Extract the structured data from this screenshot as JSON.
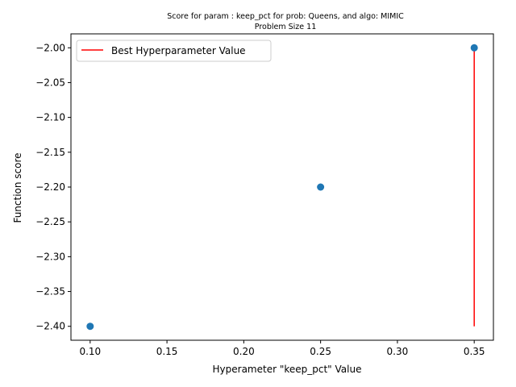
{
  "chart_data": {
    "type": "scatter",
    "title_line1": "Score for param : keep_pct for prob: Queens, and algo: MIMIC",
    "title_line2": "Problem Size 11",
    "xlabel": "Hyperameter \"keep_pct\" Value",
    "ylabel": "Function score",
    "xlim": [
      0.0875,
      0.3625
    ],
    "ylim": [
      -2.42,
      -1.98
    ],
    "x_ticks": [
      0.1,
      0.15,
      0.2,
      0.25,
      0.3,
      0.35
    ],
    "x_tick_labels": [
      "0.10",
      "0.15",
      "0.20",
      "0.25",
      "0.30",
      "0.35"
    ],
    "y_ticks": [
      -2.4,
      -2.35,
      -2.3,
      -2.25,
      -2.2,
      -2.15,
      -2.1,
      -2.05,
      -2.0
    ],
    "y_tick_labels": [
      "−2.40",
      "−2.35",
      "−2.30",
      "−2.25",
      "−2.20",
      "−2.15",
      "−2.10",
      "−2.05",
      "−2.00"
    ],
    "series": [
      {
        "x": [
          0.1,
          0.25,
          0.35
        ],
        "y": [
          -2.4,
          -2.2,
          -2.0
        ],
        "color": "#1f77b4"
      }
    ],
    "vline": {
      "name": "Best Hyperparameter Value",
      "x": 0.35,
      "ymin": -2.4,
      "ymax": -2.0,
      "color": "#ff0000"
    },
    "legend_position": "upper-left",
    "grid": false
  }
}
